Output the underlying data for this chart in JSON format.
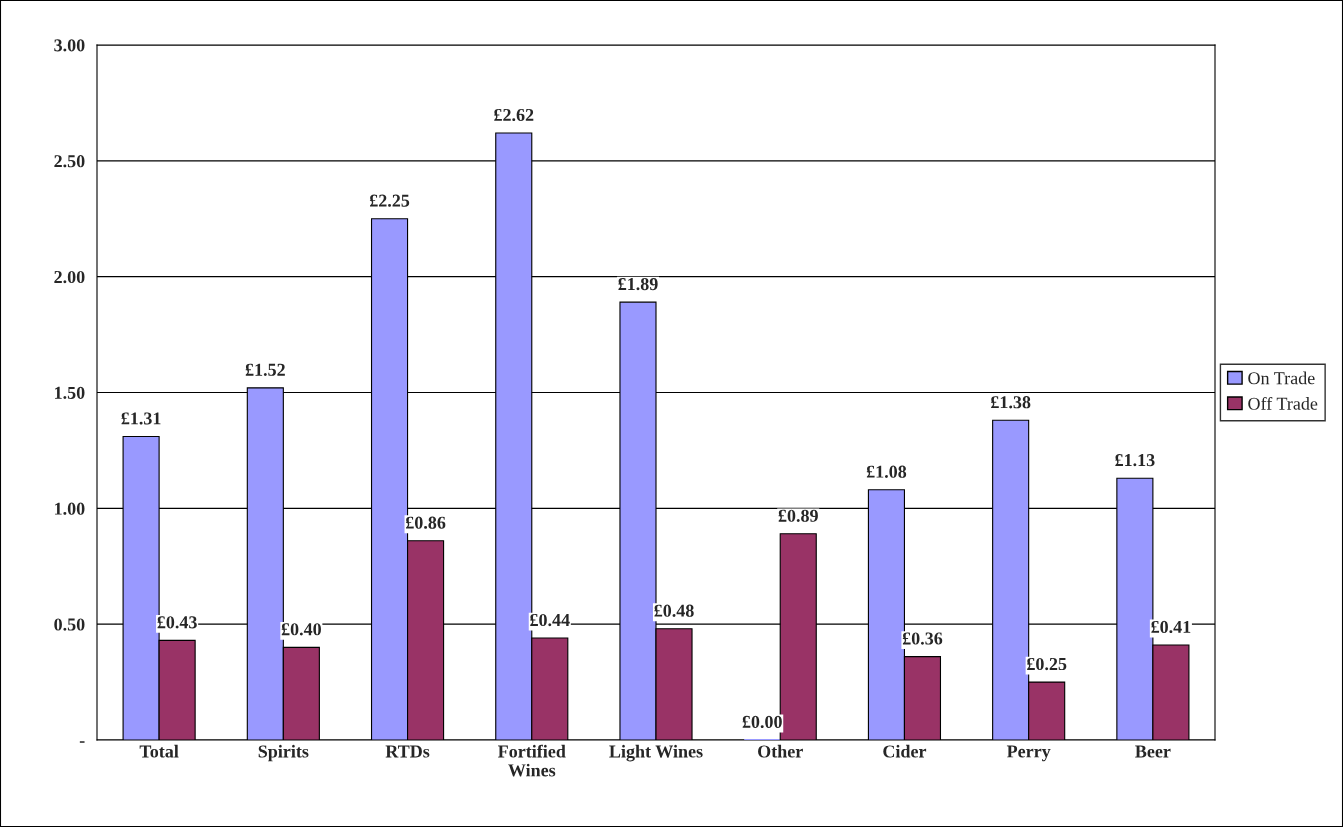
{
  "chart_data": {
    "type": "bar",
    "categories": [
      "Total",
      "Spirits",
      "RTDs",
      "Fortified\nWines",
      "Light Wines",
      "Other",
      "Cider",
      "Perry",
      "Beer"
    ],
    "series": [
      {
        "name": "On Trade",
        "color": "#9999ff",
        "values": [
          1.31,
          1.52,
          2.25,
          2.62,
          1.89,
          0.0,
          1.08,
          1.38,
          1.13
        ],
        "value_labels": [
          "£1.31",
          "£1.52",
          "£2.25",
          "£2.62",
          "£1.89",
          "£0.00",
          "£1.08",
          "£1.38",
          "£1.13"
        ]
      },
      {
        "name": "Off Trade",
        "color": "#993366",
        "values": [
          0.43,
          0.4,
          0.86,
          0.44,
          0.48,
          0.89,
          0.36,
          0.25,
          0.41
        ],
        "value_labels": [
          "£0.43",
          "£0.40",
          "£0.86",
          "£0.44",
          "£0.48",
          "£0.89",
          "£0.36",
          "£0.25",
          "£0.41"
        ]
      }
    ],
    "ylim": [
      0,
      3
    ],
    "yticks": [
      {
        "value": 0,
        "label": "-"
      },
      {
        "value": 0.5,
        "label": "0.50"
      },
      {
        "value": 1.0,
        "label": "1.00"
      },
      {
        "value": 1.5,
        "label": "1.50"
      },
      {
        "value": 2.0,
        "label": "2.00"
      },
      {
        "value": 2.5,
        "label": "2.50"
      },
      {
        "value": 3.0,
        "label": "3.00"
      }
    ],
    "grid": "y",
    "legend": "right"
  }
}
